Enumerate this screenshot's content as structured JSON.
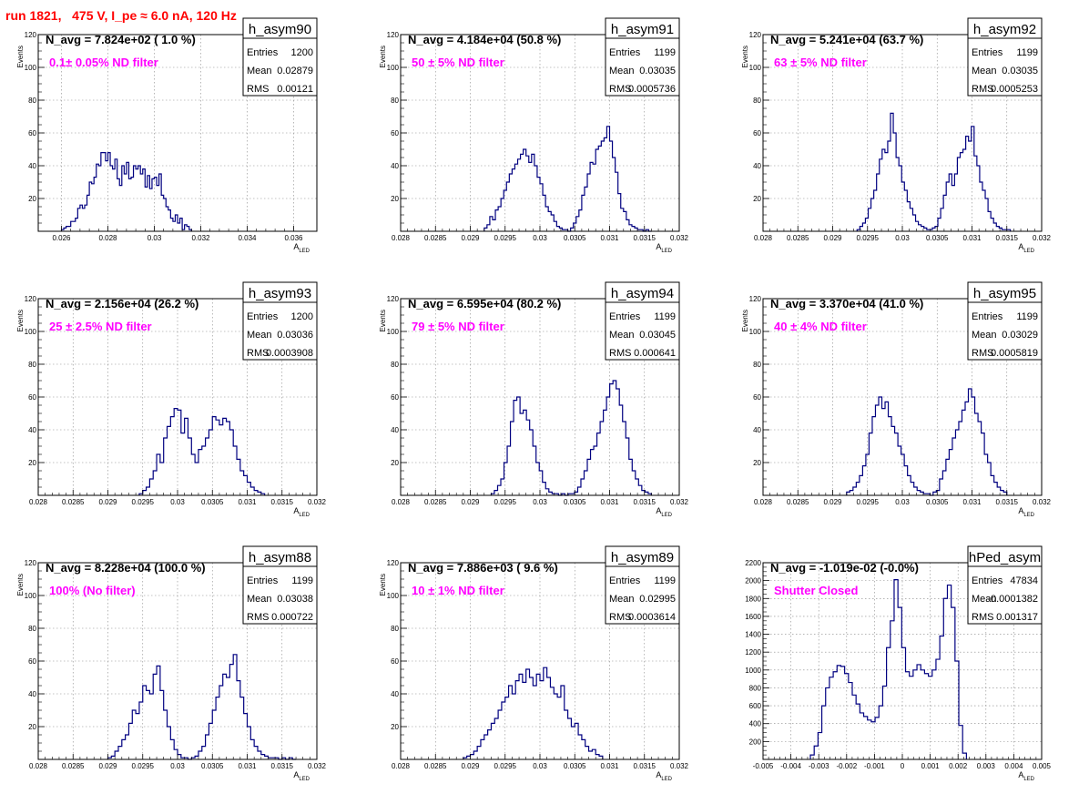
{
  "run_title": "run 1821,   475 V, I_pe ≈ 6.0 nA, 120 Hz",
  "colors": {
    "histogram": "#000080",
    "title": "#ff0000",
    "annotation": "#ff00ff",
    "grid": "#888888",
    "frame": "#000000"
  },
  "chart_data": [
    {
      "type": "histogram",
      "name": "h_asym90",
      "title": "N_avg = 7.824e+02 ( 1.0 %)",
      "annotation": "0.1± 0.05% ND filter",
      "stats": {
        "Entries": "1200",
        "Mean": "0.02879",
        "RMS": "0.00121"
      },
      "xlabel": "A",
      "xlabel_sub": "LED",
      "ylabel": "Events",
      "xlim": [
        0.025,
        0.037
      ],
      "ylim": [
        0,
        120
      ],
      "xticks": [
        0.026,
        0.028,
        0.03,
        0.032,
        0.034,
        0.036
      ],
      "xtick_labels": [
        "0.026",
        "0.028",
        "0.03",
        "0.032",
        "0.034",
        "0.036"
      ],
      "yticks": [
        20,
        40,
        60,
        80,
        100,
        120
      ],
      "ytick_labels": [
        "20",
        "40",
        "60",
        "80",
        "100",
        "120"
      ],
      "bin_edges": [
        0.026,
        0.0316
      ],
      "values": [
        1,
        2,
        3,
        3,
        6,
        6,
        8,
        14,
        16,
        14,
        16,
        22,
        30,
        29,
        33,
        41,
        40,
        48,
        48,
        43,
        48,
        40,
        38,
        44,
        32,
        28,
        40,
        35,
        42,
        32,
        33,
        40,
        38,
        40,
        35,
        38,
        27,
        34,
        26,
        32,
        33,
        28,
        35,
        22,
        20,
        15,
        13,
        8,
        6,
        10,
        5,
        8,
        1,
        4,
        3,
        1
      ]
    },
    {
      "type": "histogram",
      "name": "h_asym91",
      "title": "N_avg = 4.184e+04 (50.8 %)",
      "annotation": "50 ± 5% ND filter",
      "stats": {
        "Entries": "1199",
        "Mean": "0.03035",
        "RMS": "0.0005736"
      },
      "xlabel": "A",
      "xlabel_sub": "LED",
      "ylabel": "Events",
      "xlim": [
        0.028,
        0.032
      ],
      "ylim": [
        0,
        120
      ],
      "xticks": [
        0.028,
        0.0285,
        0.029,
        0.0295,
        0.03,
        0.0305,
        0.031,
        0.0315,
        0.032
      ],
      "xtick_labels": [
        "0.028",
        "0.0285",
        "0.029",
        "0.0295",
        "0.03",
        "0.0305",
        "0.031",
        "0.0315",
        "0.032"
      ],
      "yticks": [
        20,
        40,
        60,
        80,
        100,
        120
      ],
      "ytick_labels": [
        "20",
        "40",
        "60",
        "80",
        "100",
        "120"
      ],
      "bin_edges": [
        0.0292,
        0.0316
      ],
      "values": [
        2,
        4,
        9,
        7,
        13,
        15,
        20,
        25,
        30,
        35,
        38,
        41,
        44,
        47,
        50,
        46,
        42,
        47,
        40,
        33,
        29,
        22,
        15,
        12,
        10,
        6,
        3,
        2,
        1,
        1,
        0,
        2,
        5,
        9,
        13,
        22,
        27,
        35,
        42,
        41,
        50,
        52,
        55,
        57,
        64,
        55,
        45,
        36,
        23,
        14,
        12,
        7,
        4,
        3,
        2,
        1,
        1,
        0,
        1,
        0
      ]
    },
    {
      "type": "histogram",
      "name": "h_asym92",
      "title": "N_avg = 5.241e+04 (63.7 %)",
      "annotation": "63 ± 5% ND filter",
      "stats": {
        "Entries": "1199",
        "Mean": "0.03035",
        "RMS": "0.0005253"
      },
      "xlabel": "A",
      "xlabel_sub": "LED",
      "ylabel": "Events",
      "xlim": [
        0.028,
        0.032
      ],
      "ylim": [
        0,
        120
      ],
      "xticks": [
        0.028,
        0.0285,
        0.029,
        0.0295,
        0.03,
        0.0305,
        0.031,
        0.0315,
        0.032
      ],
      "xtick_labels": [
        "0.028",
        "0.0285",
        "0.029",
        "0.0295",
        "0.03",
        "0.0305",
        "0.031",
        "0.0315",
        "0.032"
      ],
      "yticks": [
        20,
        40,
        60,
        80,
        100,
        120
      ],
      "ytick_labels": [
        "20",
        "40",
        "60",
        "80",
        "100",
        "120"
      ],
      "bin_edges": [
        0.02935,
        0.03155
      ],
      "values": [
        1,
        3,
        5,
        8,
        14,
        20,
        25,
        35,
        44,
        50,
        48,
        55,
        72,
        60,
        45,
        40,
        30,
        25,
        18,
        14,
        10,
        6,
        4,
        3,
        2,
        1,
        1,
        2,
        3,
        8,
        14,
        22,
        30,
        35,
        28,
        35,
        45,
        48,
        50,
        58,
        55,
        64,
        46,
        40,
        30,
        25,
        20,
        12,
        8,
        5,
        3,
        2,
        1,
        1,
        1
      ]
    },
    {
      "type": "histogram",
      "name": "h_asym93",
      "title": "N_avg = 2.156e+04 (26.2 %)",
      "annotation": "25 ± 2.5% ND filter",
      "stats": {
        "Entries": "1200",
        "Mean": "0.03036",
        "RMS": "0.0003908"
      },
      "xlabel": "A",
      "xlabel_sub": "LED",
      "ylabel": "Events",
      "xlim": [
        0.028,
        0.032
      ],
      "ylim": [
        0,
        120
      ],
      "xticks": [
        0.028,
        0.0285,
        0.029,
        0.0295,
        0.03,
        0.0305,
        0.031,
        0.0315,
        0.032
      ],
      "xtick_labels": [
        "0.028",
        "0.0285",
        "0.029",
        "0.0295",
        "0.03",
        "0.0305",
        "0.031",
        "0.0315",
        "0.032"
      ],
      "yticks": [
        20,
        40,
        60,
        80,
        100,
        120
      ],
      "ytick_labels": [
        "20",
        "40",
        "60",
        "80",
        "100",
        "120"
      ],
      "bin_edges": [
        0.02945,
        0.03125
      ],
      "values": [
        1,
        3,
        5,
        10,
        15,
        25,
        20,
        35,
        42,
        48,
        53,
        52,
        38,
        47,
        35,
        25,
        20,
        28,
        30,
        35,
        40,
        48,
        46,
        43,
        47,
        45,
        40,
        30,
        22,
        15,
        12,
        8,
        5,
        3,
        2,
        1
      ]
    },
    {
      "type": "histogram",
      "name": "h_asym94",
      "title": "N_avg = 6.595e+04 (80.2 %)",
      "annotation": "79 ± 5% ND filter",
      "stats": {
        "Entries": "1199",
        "Mean": "0.03045",
        "RMS": "0.000641"
      },
      "xlabel": "A",
      "xlabel_sub": "LED",
      "ylabel": "Events",
      "xlim": [
        0.028,
        0.032
      ],
      "ylim": [
        0,
        120
      ],
      "xticks": [
        0.028,
        0.0285,
        0.029,
        0.0295,
        0.03,
        0.0305,
        0.031,
        0.0315,
        0.032
      ],
      "xtick_labels": [
        "0.028",
        "0.0285",
        "0.029",
        "0.0295",
        "0.03",
        "0.0305",
        "0.031",
        "0.0315",
        "0.032"
      ],
      "yticks": [
        20,
        40,
        60,
        80,
        100,
        120
      ],
      "ytick_labels": [
        "20",
        "40",
        "60",
        "80",
        "100",
        "120"
      ],
      "bin_edges": [
        0.0293,
        0.0316
      ],
      "values": [
        1,
        3,
        6,
        10,
        20,
        30,
        45,
        58,
        60,
        50,
        52,
        46,
        40,
        30,
        20,
        15,
        8,
        4,
        2,
        1,
        1,
        0,
        1,
        0,
        1,
        1,
        2,
        5,
        10,
        15,
        22,
        28,
        30,
        38,
        45,
        52,
        60,
        68,
        70,
        65,
        55,
        45,
        35,
        22,
        15,
        10,
        6,
        3,
        2,
        1
      ]
    },
    {
      "type": "histogram",
      "name": "h_asym95",
      "title": "N_avg = 3.370e+04 (41.0 %)",
      "annotation": "40 ± 4% ND filter",
      "stats": {
        "Entries": "1199",
        "Mean": "0.03029",
        "RMS": "0.0005819"
      },
      "xlabel": "A",
      "xlabel_sub": "LED",
      "ylabel": "Events",
      "xlim": [
        0.028,
        0.032
      ],
      "ylim": [
        0,
        120
      ],
      "xticks": [
        0.028,
        0.0285,
        0.029,
        0.0295,
        0.03,
        0.0305,
        0.031,
        0.0315,
        0.032
      ],
      "xtick_labels": [
        "0.028",
        "0.0285",
        "0.029",
        "0.0295",
        "0.03",
        "0.0305",
        "0.031",
        "0.0315",
        "0.032"
      ],
      "yticks": [
        20,
        40,
        60,
        80,
        100,
        120
      ],
      "ytick_labels": [
        "20",
        "40",
        "60",
        "80",
        "100",
        "120"
      ],
      "bin_edges": [
        0.0292,
        0.0315
      ],
      "values": [
        2,
        3,
        5,
        8,
        12,
        18,
        25,
        38,
        48,
        55,
        60,
        53,
        57,
        48,
        42,
        38,
        30,
        25,
        18,
        12,
        8,
        5,
        3,
        2,
        1,
        1,
        0,
        2,
        3,
        10,
        15,
        22,
        28,
        35,
        40,
        45,
        52,
        57,
        65,
        60,
        50,
        45,
        38,
        25,
        20,
        12,
        8,
        5,
        3,
        2
      ]
    },
    {
      "type": "histogram",
      "name": "h_asym88",
      "title": "N_avg = 8.228e+04 (100.0 %)",
      "annotation": "100% (No filter)",
      "stats": {
        "Entries": "1199",
        "Mean": "0.03038",
        "RMS": "0.000722"
      },
      "xlabel": "A",
      "xlabel_sub": "LED",
      "ylabel": "Events",
      "xlim": [
        0.028,
        0.032
      ],
      "ylim": [
        0,
        120
      ],
      "xticks": [
        0.028,
        0.0285,
        0.029,
        0.0295,
        0.03,
        0.0305,
        0.031,
        0.0315,
        0.032
      ],
      "xtick_labels": [
        "0.028",
        "0.0285",
        "0.029",
        "0.0295",
        "0.03",
        "0.0305",
        "0.031",
        "0.0315",
        "0.032"
      ],
      "yticks": [
        20,
        40,
        60,
        80,
        100,
        120
      ],
      "ytick_labels": [
        "20",
        "40",
        "60",
        "80",
        "100",
        "120"
      ],
      "bin_edges": [
        0.029,
        0.0317
      ],
      "values": [
        1,
        2,
        5,
        8,
        12,
        15,
        22,
        30,
        28,
        35,
        45,
        42,
        40,
        52,
        57,
        42,
        30,
        20,
        12,
        6,
        3,
        1,
        1,
        0,
        1,
        2,
        5,
        8,
        15,
        22,
        30,
        38,
        45,
        52,
        50,
        58,
        64,
        48,
        38,
        28,
        20,
        12,
        8,
        5,
        3,
        2,
        1,
        1,
        1,
        0,
        1,
        0,
        1,
        0
      ]
    },
    {
      "type": "histogram",
      "name": "h_asym89",
      "title": "N_avg = 7.886e+03 ( 9.6 %)",
      "annotation": "10 ± 1% ND filter",
      "stats": {
        "Entries": "1199",
        "Mean": "0.02995",
        "RMS": "0.0003614"
      },
      "xlabel": "A",
      "xlabel_sub": "LED",
      "ylabel": "Events",
      "xlim": [
        0.028,
        0.032
      ],
      "ylim": [
        0,
        120
      ],
      "xticks": [
        0.028,
        0.0285,
        0.029,
        0.0295,
        0.03,
        0.0305,
        0.031,
        0.0315,
        0.032
      ],
      "xtick_labels": [
        "0.028",
        "0.0285",
        "0.029",
        "0.0295",
        "0.03",
        "0.0305",
        "0.031",
        "0.0315",
        "0.032"
      ],
      "yticks": [
        20,
        40,
        60,
        80,
        100,
        120
      ],
      "ytick_labels": [
        "20",
        "40",
        "60",
        "80",
        "100",
        "120"
      ],
      "bin_edges": [
        0.0289,
        0.0309
      ],
      "values": [
        1,
        2,
        3,
        5,
        8,
        12,
        15,
        18,
        22,
        25,
        30,
        35,
        38,
        45,
        40,
        48,
        52,
        47,
        55,
        50,
        45,
        52,
        48,
        56,
        50,
        44,
        40,
        38,
        45,
        30,
        25,
        20,
        22,
        15,
        12,
        8,
        5,
        6,
        3,
        2
      ]
    },
    {
      "type": "histogram",
      "name": "hPed_asym",
      "title": "N_avg = -1.019e-02 (-0.0%)",
      "annotation": "Shutter Closed",
      "stats": {
        "Entries": "47834",
        "Mean": "-0.0001382",
        "RMS": "0.001317"
      },
      "xlabel": "A",
      "xlabel_sub": "LED",
      "ylabel": "",
      "xlim": [
        -0.005,
        0.005
      ],
      "ylim": [
        0,
        2200
      ],
      "xticks": [
        -0.005,
        -0.004,
        -0.003,
        -0.002,
        -0.001,
        0,
        0.001,
        0.002,
        0.003,
        0.004,
        0.005
      ],
      "xtick_labels": [
        "-0.005",
        "-0.004",
        "-0.003",
        "-0.002",
        "-0.001",
        "0",
        "0.001",
        "0.002",
        "0.003",
        "0.004",
        "0.005"
      ],
      "yticks": [
        200,
        400,
        600,
        800,
        1000,
        1200,
        1400,
        1600,
        1800,
        2000,
        2200
      ],
      "ytick_labels": [
        "200",
        "400",
        "600",
        "800",
        "1000",
        "1200",
        "1400",
        "1600",
        "1800",
        "2000",
        "2200"
      ],
      "bin_edges": [
        -0.0033,
        0.0023
      ],
      "values": [
        50,
        150,
        300,
        600,
        800,
        920,
        980,
        1050,
        1040,
        960,
        860,
        720,
        620,
        520,
        480,
        440,
        420,
        470,
        600,
        820,
        1250,
        1550,
        2010,
        1700,
        1250,
        980,
        930,
        1000,
        1060,
        1000,
        960,
        930,
        1000,
        1120,
        1380,
        1800,
        1950,
        1700,
        1100,
        380,
        70
      ]
    }
  ]
}
